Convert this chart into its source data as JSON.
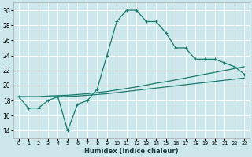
{
  "xlabel": "Humidex (Indice chaleur)",
  "ylabel": "",
  "bg_color": "#cce8ec",
  "grid_color": "#ffffff",
  "line_color": "#1a7a6e",
  "xlim": [
    -0.5,
    23.5
  ],
  "ylim": [
    13.0,
    31.0
  ],
  "xticks": [
    0,
    1,
    2,
    3,
    4,
    5,
    6,
    7,
    8,
    9,
    10,
    11,
    12,
    13,
    14,
    15,
    16,
    17,
    18,
    19,
    20,
    21,
    22,
    23
  ],
  "yticks": [
    14,
    16,
    18,
    20,
    22,
    24,
    26,
    28,
    30
  ],
  "curve1_x": [
    0,
    1,
    2,
    3,
    4,
    5,
    6,
    7,
    8,
    9,
    10,
    11,
    12,
    13,
    14,
    15,
    16,
    17,
    18,
    19,
    20,
    21,
    22,
    23
  ],
  "curve1_y": [
    18.5,
    17.0,
    17.0,
    18.0,
    18.5,
    14.0,
    17.5,
    18.0,
    19.5,
    24.0,
    28.5,
    30.0,
    30.0,
    28.5,
    28.5,
    27.0,
    25.0,
    25.0,
    23.5,
    23.5,
    23.5,
    23.0,
    22.5,
    21.5
  ],
  "curve2_x": [
    0,
    1,
    2,
    3,
    4,
    5,
    6,
    7,
    8,
    9,
    10,
    11,
    12,
    13,
    14,
    15,
    16,
    17,
    18,
    19,
    20,
    21,
    22,
    23
  ],
  "curve2_y": [
    18.5,
    18.5,
    18.5,
    18.6,
    18.65,
    18.7,
    18.8,
    18.9,
    19.05,
    19.2,
    19.4,
    19.6,
    19.8,
    20.05,
    20.3,
    20.5,
    20.75,
    21.0,
    21.25,
    21.5,
    21.75,
    22.0,
    22.25,
    22.5
  ],
  "curve3_x": [
    0,
    1,
    2,
    3,
    4,
    5,
    6,
    7,
    8,
    9,
    10,
    11,
    12,
    13,
    14,
    15,
    16,
    17,
    18,
    19,
    20,
    21,
    22,
    23
  ],
  "curve3_y": [
    18.5,
    18.5,
    18.5,
    18.5,
    18.52,
    18.55,
    18.6,
    18.7,
    18.8,
    18.9,
    19.05,
    19.2,
    19.35,
    19.5,
    19.65,
    19.8,
    19.95,
    20.1,
    20.25,
    20.4,
    20.55,
    20.7,
    20.85,
    21.0
  ]
}
